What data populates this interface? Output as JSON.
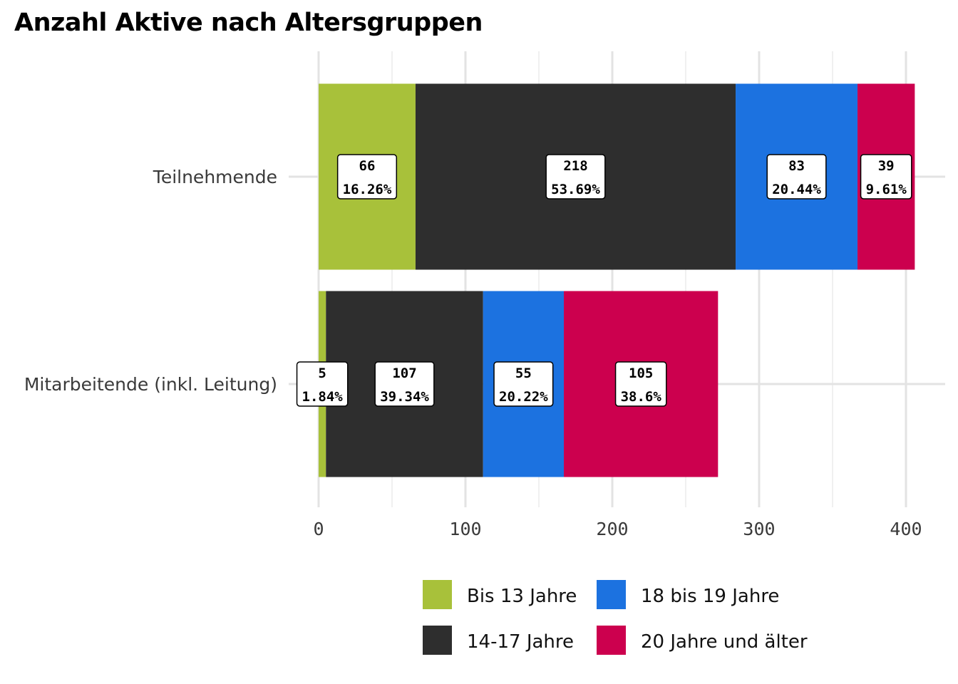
{
  "chart_data": {
    "type": "bar",
    "orientation": "horizontal",
    "stacked": true,
    "title": "Anzahl Aktive nach Altersgruppen",
    "xlabel": "",
    "ylabel": "",
    "xlim": [
      0,
      400
    ],
    "x_ticks": [
      "0",
      "100",
      "200",
      "300",
      "400"
    ],
    "categories": [
      "Teilnehmende",
      "Mitarbeitende (inkl. Leitung)"
    ],
    "series": [
      {
        "name": "Bis 13 Jahre",
        "color": "#a8c13a",
        "values": [
          66,
          5
        ],
        "labels": [
          "16.26%",
          "1.84%"
        ]
      },
      {
        "name": "14-17 Jahre",
        "color": "#2e2e2e",
        "values": [
          218,
          107
        ],
        "labels": [
          "53.69%",
          "39.34%"
        ]
      },
      {
        "name": "18 bis 19 Jahre",
        "color": "#1c72e0",
        "values": [
          83,
          55
        ],
        "labels": [
          "20.44%",
          "20.22%"
        ]
      },
      {
        "name": "20 Jahre und älter",
        "color": "#cc004e",
        "values": [
          39,
          105
        ],
        "labels": [
          "9.61%",
          "38.6%"
        ]
      }
    ],
    "grid": true,
    "legend_position": "bottom",
    "legend_order": [
      "Bis 13 Jahre",
      "18 bis 19 Jahre",
      "14-17 Jahre",
      "20 Jahre und älter"
    ]
  }
}
